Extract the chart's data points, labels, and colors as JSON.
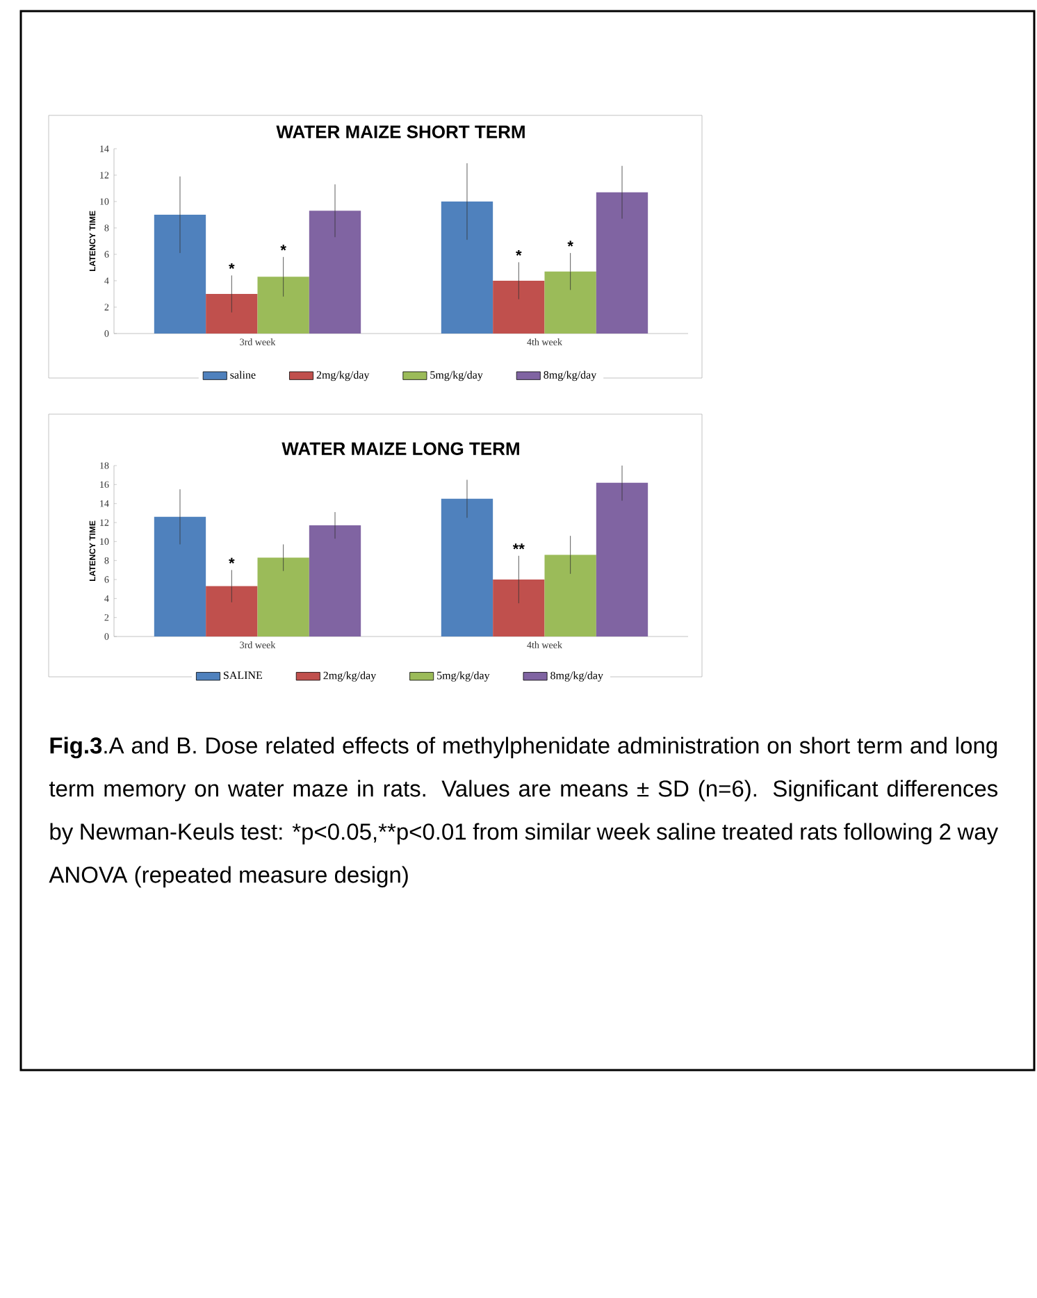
{
  "chart_data": [
    {
      "type": "bar",
      "title": "WATER MAIZE SHORT TERM",
      "ylabel": "LATENCY TIME",
      "categories": [
        "3rd week",
        "4th week"
      ],
      "ylim": [
        0,
        14
      ],
      "yticks": [
        0,
        2,
        4,
        6,
        8,
        10,
        12,
        14
      ],
      "legend": "bottom",
      "series": [
        {
          "name": "saline",
          "color": "#4f81bd",
          "values": [
            9,
            10
          ],
          "errors": [
            2.9,
            2.9
          ]
        },
        {
          "name": "2mg/kg/day",
          "color": "#c0504d",
          "values": [
            3,
            4
          ],
          "errors": [
            1.4,
            1.4
          ],
          "value_labels": [
            "*",
            "*"
          ]
        },
        {
          "name": "5mg/kg/day",
          "color": "#9bbb59",
          "values": [
            4.3,
            4.7
          ],
          "errors": [
            1.5,
            1.4
          ],
          "value_labels": [
            "*",
            "*"
          ]
        },
        {
          "name": "8mg/kg/day",
          "color": "#8064a2",
          "values": [
            9.3,
            10.7
          ],
          "errors": [
            2,
            2
          ]
        }
      ]
    },
    {
      "type": "bar",
      "title": "WATER MAIZE  LONG TERM",
      "ylabel": "LATENCY TIME",
      "categories": [
        "3rd week",
        "4th week"
      ],
      "ylim": [
        0,
        18
      ],
      "yticks": [
        0,
        2,
        4,
        6,
        8,
        10,
        12,
        14,
        16,
        18
      ],
      "legend": "bottom",
      "series": [
        {
          "name": "SALINE",
          "color": "#4f81bd",
          "values": [
            12.6,
            14.5
          ],
          "errors": [
            2.9,
            2
          ]
        },
        {
          "name": "2mg/kg/day",
          "color": "#c0504d",
          "values": [
            5.3,
            6
          ],
          "errors": [
            1.7,
            2.5
          ],
          "value_labels": [
            "*",
            "**"
          ]
        },
        {
          "name": "5mg/kg/day",
          "color": "#9bbb59",
          "values": [
            8.3,
            8.6
          ],
          "errors": [
            1.4,
            2
          ]
        },
        {
          "name": "8mg/kg/day",
          "color": "#8064a2",
          "values": [
            11.7,
            16.2
          ],
          "errors": [
            1.4,
            1.9
          ]
        }
      ],
      "annotations": [
        "**Fig.3**.A and B. Dose related effects of methylphenidate administration on short term and long term memory on water maze in rats. Values are means ± SD (n=6). Significant differences by Newman-Keuls test: *p<0.05,**p<0.01 from similar week saline treated rats following 2 way ANOVA (repeated measure design)"
      ]
    }
  ]
}
